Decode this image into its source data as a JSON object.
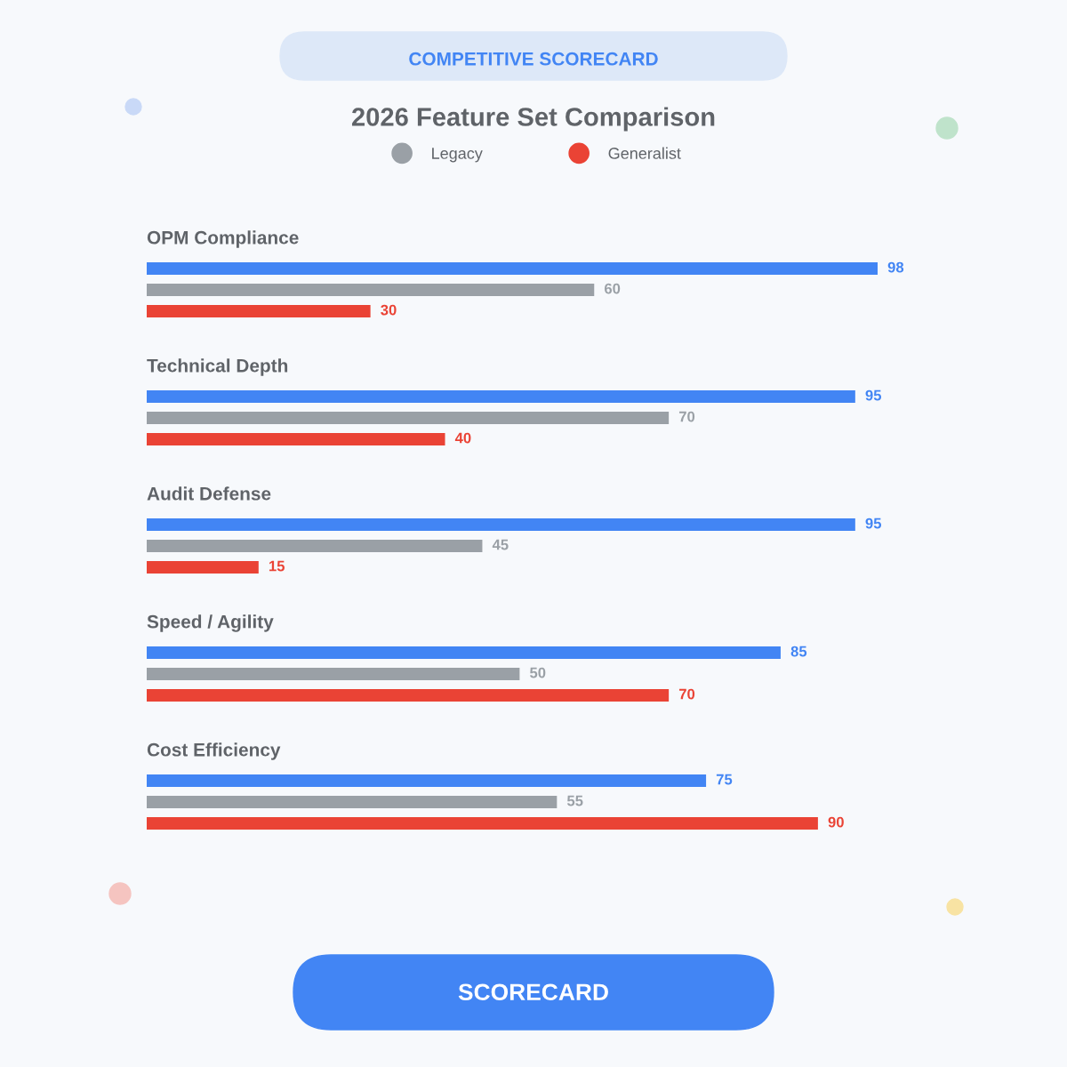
{
  "chart_data": {
    "type": "bar",
    "orientation": "horizontal",
    "subtitle": "COMPETITIVE SCORECARD",
    "title": "2026 Feature Set Comparison",
    "categories": [
      "OPM Compliance",
      "Technical Depth",
      "Audit Defense",
      "Speed / Agility",
      "Cost Efficiency"
    ],
    "series": [
      {
        "color": "#4285f4",
        "values": [
          98,
          95,
          95,
          85,
          75
        ]
      },
      {
        "name": "Legacy",
        "color": "#9aa0a6",
        "values": [
          60,
          70,
          45,
          50,
          55
        ]
      },
      {
        "name": "Generalist",
        "color": "#ea4335",
        "values": [
          30,
          40,
          15,
          70,
          90
        ]
      }
    ],
    "data_labels": true,
    "legend": "top",
    "annotations": [
      "SCORECARD"
    ]
  }
}
